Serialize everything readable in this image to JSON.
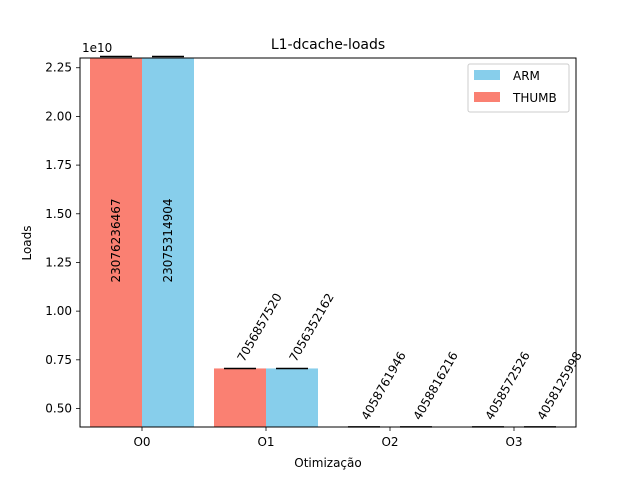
{
  "chart_data": {
    "type": "bar",
    "title": "L1-dcache-loads",
    "xlabel": "Otimização",
    "ylabel": "Loads",
    "offset_text": "1e10",
    "categories": [
      "O0",
      "O1",
      "O2",
      "O3"
    ],
    "ylim": [
      4050000000.0,
      23000000000.0
    ],
    "yticks": [
      5000000000.0,
      7500000000.0,
      10000000000.0,
      12500000000.0,
      15000000000.0,
      17500000000.0,
      20000000000.0,
      22500000000.0
    ],
    "ytick_labels": [
      "0.50",
      "0.75",
      "1.00",
      "1.25",
      "1.50",
      "1.75",
      "2.00",
      "2.25"
    ],
    "series": [
      {
        "name": "THUMB",
        "color": "#fa8072",
        "values": [
          23076236467,
          7056857520,
          4058761946,
          4058572526
        ],
        "labels": [
          "23076236467",
          "7056857520",
          "4058761946",
          "4058572526"
        ]
      },
      {
        "name": "ARM",
        "color": "#87ceeb",
        "values": [
          23075314904,
          7056352162,
          4058816216,
          4058125998
        ],
        "labels": [
          "23075314904",
          "7056352162",
          "4058816216",
          "4058125998"
        ]
      }
    ],
    "legend_order": [
      "ARM",
      "THUMB"
    ],
    "legend_position": "top-right",
    "grid": false
  }
}
